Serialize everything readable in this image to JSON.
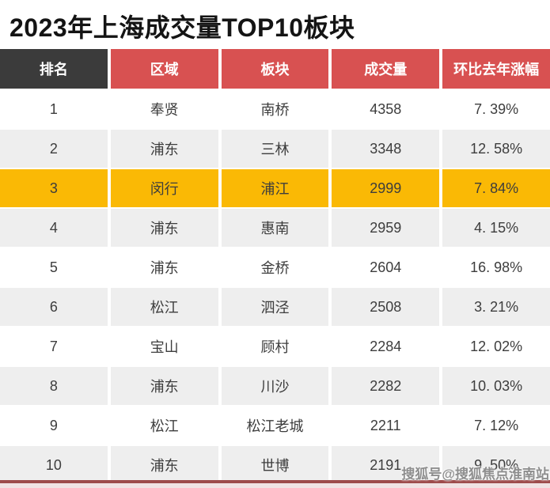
{
  "title": "2023年上海成交量TOP10板块",
  "watermark": "搜狐号@搜狐焦点淮南站",
  "colors": {
    "title_text": "#141414",
    "header_rank_bg": "#3B3B3B",
    "header_bg": "#D85151",
    "header_text": "#FFFFFF",
    "row_bg": "#FFFFFF",
    "alt_row_bg": "#EEEEEE",
    "highlight_row_bg": "#FAB905",
    "cell_text": "#3D3D3D",
    "bottom_line": "#9D4B4B",
    "bottom_strip": "#F0E3E4",
    "watermark_text": "#8E8E8E"
  },
  "table": {
    "columns": [
      {
        "key": "rank",
        "label": "排名"
      },
      {
        "key": "region",
        "label": "区域"
      },
      {
        "key": "area",
        "label": "板块"
      },
      {
        "key": "volume",
        "label": "成交量"
      },
      {
        "key": "yoy",
        "label": "环比去年涨幅"
      }
    ],
    "rows": [
      {
        "rank": "1",
        "region": "奉贤",
        "area": "南桥",
        "volume": "4358",
        "yoy": "7. 39%",
        "highlight": false
      },
      {
        "rank": "2",
        "region": "浦东",
        "area": "三林",
        "volume": "3348",
        "yoy": "12. 58%",
        "highlight": false
      },
      {
        "rank": "3",
        "region": "闵行",
        "area": "浦江",
        "volume": "2999",
        "yoy": "7. 84%",
        "highlight": true
      },
      {
        "rank": "4",
        "region": "浦东",
        "area": "惠南",
        "volume": "2959",
        "yoy": "4. 15%",
        "highlight": false
      },
      {
        "rank": "5",
        "region": "浦东",
        "area": "金桥",
        "volume": "2604",
        "yoy": "16. 98%",
        "highlight": false
      },
      {
        "rank": "6",
        "region": "松江",
        "area": "泗泾",
        "volume": "2508",
        "yoy": "3. 21%",
        "highlight": false
      },
      {
        "rank": "7",
        "region": "宝山",
        "area": "顾村",
        "volume": "2284",
        "yoy": "12. 02%",
        "highlight": false
      },
      {
        "rank": "8",
        "region": "浦东",
        "area": "川沙",
        "volume": "2282",
        "yoy": "10. 03%",
        "highlight": false
      },
      {
        "rank": "9",
        "region": "松江",
        "area": "松江老城",
        "volume": "2211",
        "yoy": "7. 12%",
        "highlight": false
      },
      {
        "rank": "10",
        "region": "浦东",
        "area": "世博",
        "volume": "2191",
        "yoy": "9. 50%",
        "highlight": false
      }
    ]
  },
  "chart_data": {
    "type": "table",
    "title": "2023年上海成交量TOP10板块",
    "columns": [
      "排名",
      "区域",
      "板块",
      "成交量",
      "环比去年涨幅"
    ],
    "rows": [
      [
        1,
        "奉贤",
        "南桥",
        4358,
        "7.39%"
      ],
      [
        2,
        "浦东",
        "三林",
        3348,
        "12.58%"
      ],
      [
        3,
        "闵行",
        "浦江",
        2999,
        "7.84%"
      ],
      [
        4,
        "浦东",
        "惠南",
        2959,
        "4.15%"
      ],
      [
        5,
        "浦东",
        "金桥",
        2604,
        "16.98%"
      ],
      [
        6,
        "松江",
        "泗泾",
        2508,
        "3.21%"
      ],
      [
        7,
        "宝山",
        "顾村",
        2284,
        "12.02%"
      ],
      [
        8,
        "浦东",
        "川沙",
        2282,
        "10.03%"
      ],
      [
        9,
        "松江",
        "松江老城",
        2211,
        "7.12%"
      ],
      [
        10,
        "浦东",
        "世博",
        2191,
        "9.50%"
      ]
    ],
    "highlighted_row_rank": 3,
    "layout": {
      "header_style": "rank column dark gray, others red, white bold text",
      "zebra_striping": true,
      "highlight_color": "#FAB905"
    }
  }
}
